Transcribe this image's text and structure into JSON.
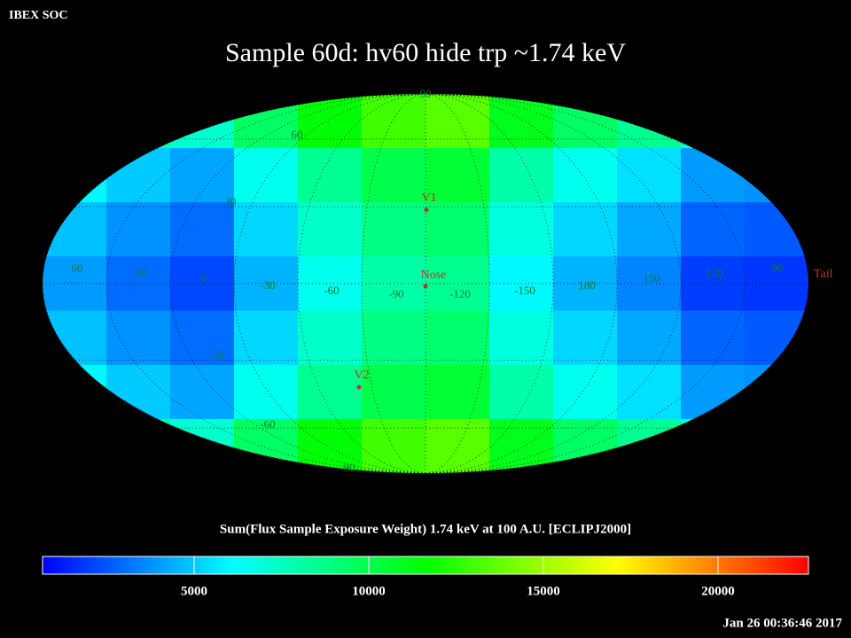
{
  "chart_data": {
    "type": "skymap",
    "header": "IBEX SOC",
    "title": "Sample 60d: hv60 hide trp ~1.74 keV",
    "colorbar_label": "Sum(Flux Sample Exposure Weight)  1.74 keV at 100 A.U. [ECLIPJ2000]",
    "timestamp": "Jan 26 00:36:46 2017",
    "z": [
      [
        9000,
        8000,
        7200,
        9500,
        11500,
        13000,
        13500,
        11000,
        9500,
        8500,
        7000,
        6800
      ],
      [
        6000,
        5000,
        4200,
        6500,
        8500,
        10000,
        10500,
        8000,
        6500,
        5500,
        4000,
        3800
      ],
      [
        4800,
        3800,
        3000,
        5300,
        7300,
        8800,
        9300,
        6800,
        5300,
        4300,
        2800,
        2600
      ],
      [
        4000,
        3000,
        2200,
        4500,
        6500,
        8000,
        8500,
        6000,
        4500,
        3500,
        2000,
        1800
      ],
      [
        4800,
        3800,
        3000,
        5300,
        7300,
        8800,
        9300,
        6800,
        5300,
        4300,
        2800,
        2600
      ],
      [
        6000,
        5000,
        4200,
        6500,
        8500,
        10000,
        10500,
        8000,
        6500,
        5500,
        4000,
        3800
      ],
      [
        9000,
        8000,
        7200,
        9500,
        11500,
        13000,
        13500,
        11000,
        9500,
        8500,
        7000,
        6800
      ]
    ],
    "clim": [
      660,
      22590
    ],
    "colorbar_ticks": [
      5000,
      10000,
      15000,
      20000
    ],
    "lon_labels": [
      60,
      30,
      0,
      -30,
      -60,
      -90,
      -120,
      -150,
      180,
      150,
      120,
      90
    ],
    "lat_labels": [
      90,
      60,
      30,
      -30,
      -60,
      -90
    ],
    "markers": [
      "V1",
      "Nose",
      "V2",
      "Tail"
    ]
  }
}
